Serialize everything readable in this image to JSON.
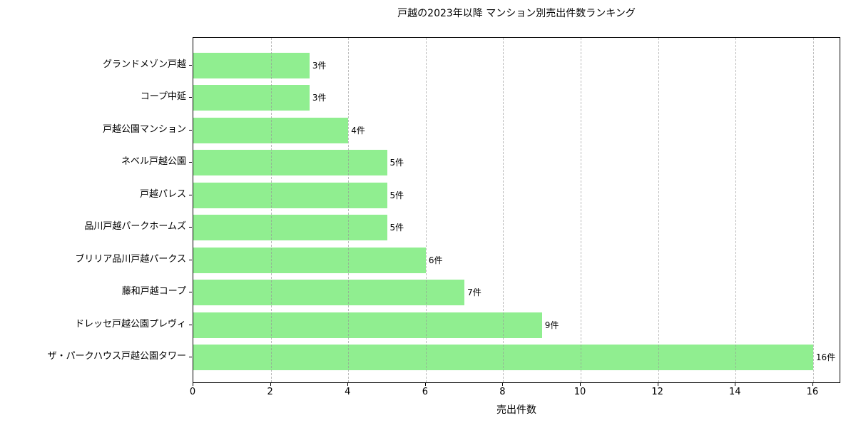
{
  "title": "戸越の2023年以降 マンション別売出件数ランキング",
  "chart_data": {
    "type": "bar",
    "orientation": "horizontal",
    "title": "戸越の2023年以降 マンション別売出件数ランキング",
    "xlabel": "売出件数",
    "ylabel": "",
    "categories": [
      "グランドメゾン戸越",
      "コープ中延",
      "戸越公園マンション",
      "ネベル戸越公園",
      "戸越パレス",
      "品川戸越パークホームズ",
      "ブリリア品川戸越パークス",
      "藤和戸越コープ",
      "ドレッセ戸越公園プレヴィ",
      "ザ・パークハウス戸越公園タワー"
    ],
    "values": [
      3,
      3,
      4,
      5,
      5,
      5,
      6,
      7,
      9,
      16
    ],
    "value_labels": [
      "3件",
      "3件",
      "4件",
      "5件",
      "5件",
      "5件",
      "6件",
      "7件",
      "9件",
      "16件"
    ],
    "xticks": [
      0,
      2,
      4,
      6,
      8,
      10,
      12,
      14,
      16
    ],
    "xlim": [
      0,
      16.72
    ],
    "grid": {
      "axis": "x",
      "style": "dashed",
      "color": "#969696"
    },
    "bar_color": "#90EE90",
    "legend": "none"
  }
}
